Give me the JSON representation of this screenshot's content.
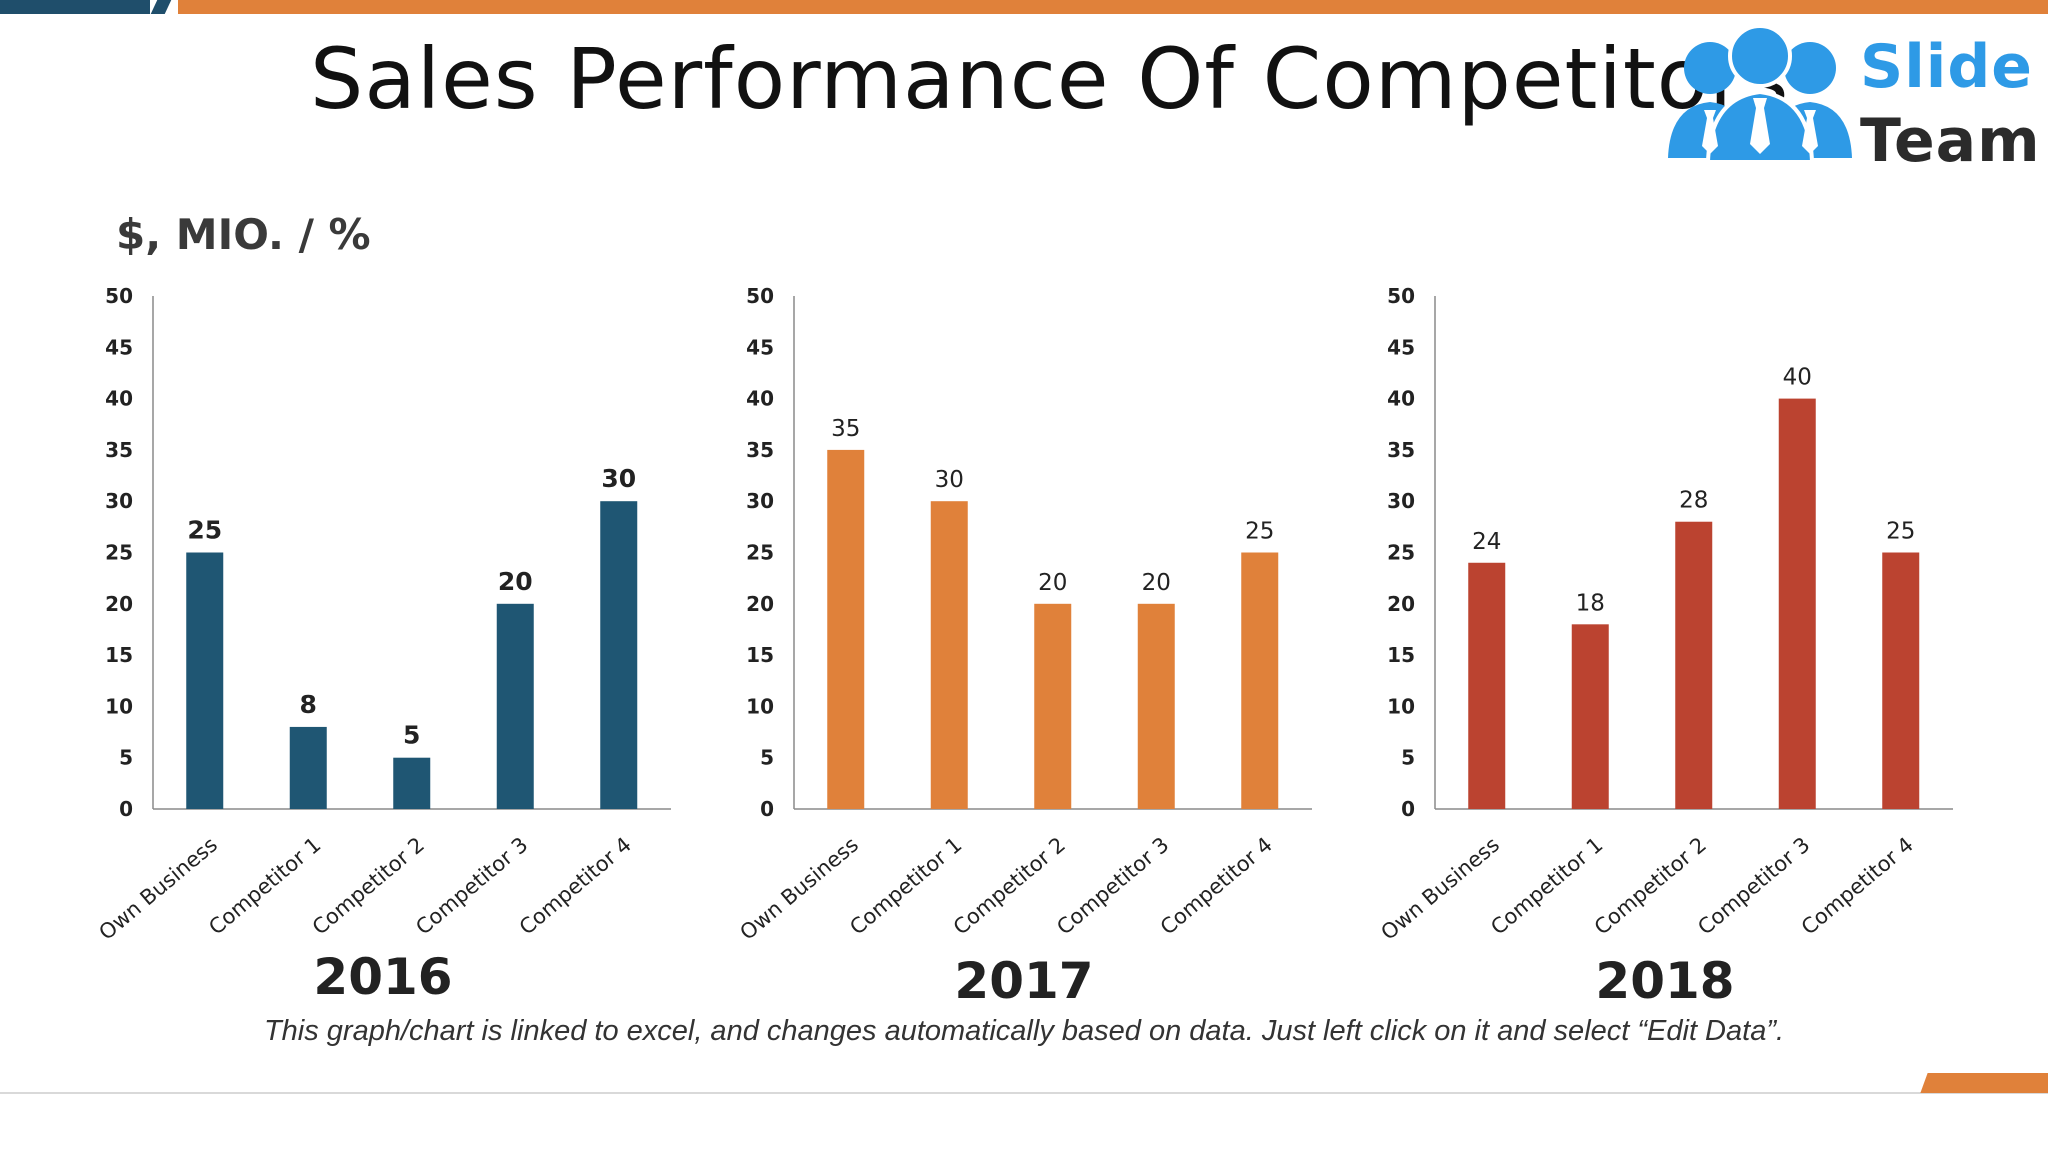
{
  "title": "Sales Performance Of Competitors",
  "logo": {
    "line1": "Slide",
    "line2": "Team"
  },
  "unit_label": "$, MIO. / %",
  "footnote": "This graph/chart is linked to excel, and changes automatically based on data. Just left click on it and select “Edit Data”.",
  "chart_data": [
    {
      "type": "bar",
      "title": "2016",
      "categories": [
        "Own Business",
        "Competitor 1",
        "Competitor 2",
        "Competitor 3",
        "Competitor 4"
      ],
      "values": [
        25,
        8,
        5,
        20,
        30
      ],
      "ylim": [
        0,
        50
      ],
      "yticks": [
        0,
        5,
        10,
        15,
        20,
        25,
        30,
        35,
        40,
        45,
        50
      ],
      "color": "#1f5673",
      "bold_labels": true,
      "grid": false
    },
    {
      "type": "bar",
      "title": "2017",
      "categories": [
        "Own Business",
        "Competitor 1",
        "Competitor 2",
        "Competitor 3",
        "Competitor 4"
      ],
      "values": [
        35,
        30,
        20,
        20,
        25
      ],
      "ylim": [
        0,
        50
      ],
      "yticks": [
        0,
        5,
        10,
        15,
        20,
        25,
        30,
        35,
        40,
        45,
        50
      ],
      "color": "#e0813a",
      "bold_labels": false,
      "grid": false
    },
    {
      "type": "bar",
      "title": "2018",
      "categories": [
        "Own Business",
        "Competitor 1",
        "Competitor 2",
        "Competitor 3",
        "Competitor 4"
      ],
      "values": [
        24,
        18,
        28,
        40,
        25
      ],
      "ylim": [
        0,
        50
      ],
      "yticks": [
        0,
        5,
        10,
        15,
        20,
        25,
        30,
        35,
        40,
        45,
        50
      ],
      "color": "#bb4330",
      "bold_labels": false,
      "grid": false
    }
  ]
}
